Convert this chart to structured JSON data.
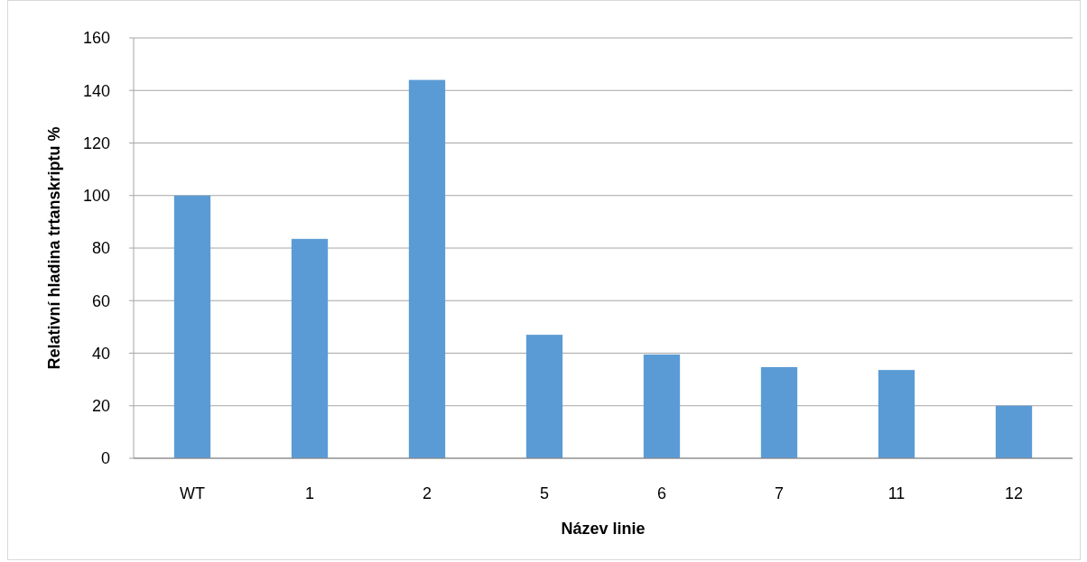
{
  "chart_data": {
    "type": "bar",
    "xlabel": "Název linie",
    "ylabel": "Relativní hladina trtanskriptu %",
    "categories": [
      "WT",
      "1",
      "2",
      "5",
      "6",
      "7",
      "11",
      "12"
    ],
    "values": [
      100,
      83.5,
      144,
      47,
      39.5,
      34.7,
      33.6,
      20
    ],
    "color": "#5b9bd5",
    "ylim": [
      0,
      160
    ],
    "yticks": [
      0,
      20,
      40,
      60,
      80,
      100,
      120,
      140,
      160
    ],
    "grid": "y"
  }
}
